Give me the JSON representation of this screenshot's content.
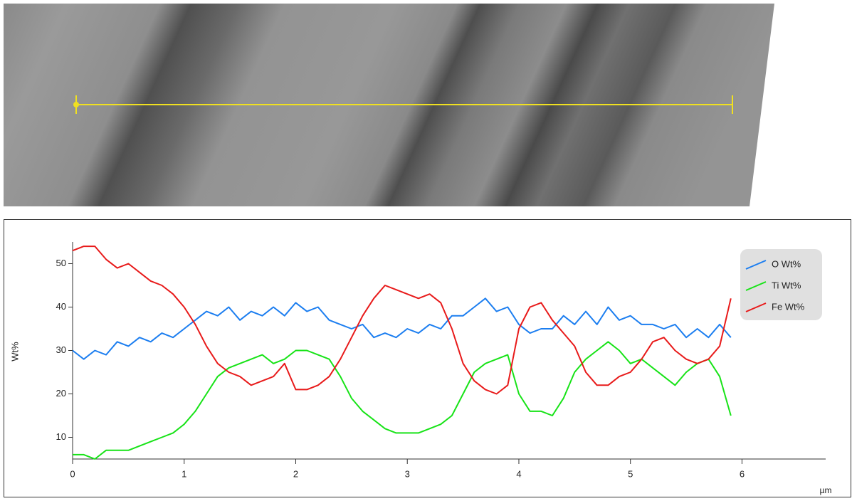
{
  "chart_data": {
    "type": "line",
    "y_label": "Wt%",
    "x_label": "µm",
    "x": [
      0,
      0.1,
      0.2,
      0.3,
      0.4,
      0.5,
      0.6,
      0.7,
      0.8,
      0.9,
      1,
      1.1,
      1.2,
      1.3,
      1.4,
      1.5,
      1.6,
      1.7,
      1.8,
      1.9,
      2,
      2.1,
      2.2,
      2.3,
      2.4,
      2.5,
      2.6,
      2.7,
      2.8,
      2.9,
      3,
      3.1,
      3.2,
      3.3,
      3.4,
      3.5,
      3.6,
      3.7,
      3.8,
      3.9,
      4,
      4.1,
      4.2,
      4.3,
      4.4,
      4.5,
      4.6,
      4.7,
      4.8,
      4.9,
      5,
      5.1,
      5.2,
      5.3,
      5.4,
      5.5,
      5.6,
      5.7,
      5.8,
      5.9
    ],
    "series": [
      {
        "name": "O Wt%",
        "color": "#1c7ef0",
        "values": [
          30,
          28,
          30,
          29,
          32,
          31,
          33,
          32,
          34,
          33,
          35,
          37,
          39,
          38,
          40,
          37,
          39,
          38,
          40,
          38,
          41,
          39,
          40,
          37,
          36,
          35,
          36,
          33,
          34,
          33,
          35,
          34,
          36,
          35,
          38,
          38,
          40,
          42,
          39,
          40,
          36,
          34,
          35,
          35,
          38,
          36,
          39,
          36,
          40,
          37,
          38,
          36,
          36,
          35,
          36,
          33,
          35,
          33,
          36,
          33
        ]
      },
      {
        "name": "Ti Wt%",
        "color": "#17e317",
        "values": [
          6,
          6,
          5,
          7,
          7,
          7,
          8,
          9,
          10,
          11,
          13,
          16,
          20,
          24,
          26,
          27,
          28,
          29,
          27,
          28,
          30,
          30,
          29,
          28,
          24,
          19,
          16,
          14,
          12,
          11,
          11,
          11,
          12,
          13,
          15,
          20,
          25,
          27,
          28,
          29,
          20,
          16,
          16,
          15,
          19,
          25,
          28,
          30,
          32,
          30,
          27,
          28,
          26,
          24,
          22,
          25,
          27,
          28,
          24,
          15
        ]
      },
      {
        "name": "Fe Wt%",
        "color": "#e81a1a",
        "values": [
          53,
          54,
          54,
          51,
          49,
          50,
          48,
          46,
          45,
          43,
          40,
          36,
          31,
          27,
          25,
          24,
          22,
          23,
          24,
          27,
          21,
          21,
          22,
          24,
          28,
          33,
          38,
          42,
          45,
          44,
          43,
          42,
          43,
          41,
          35,
          27,
          23,
          21,
          20,
          22,
          35,
          40,
          41,
          37,
          34,
          31,
          25,
          22,
          22,
          24,
          25,
          28,
          32,
          33,
          30,
          28,
          27,
          28,
          31,
          42
        ]
      }
    ],
    "xlim": [
      0,
      6.75
    ],
    "ylim": [
      5,
      55
    ],
    "xticks": [
      0,
      1,
      2,
      3,
      4,
      5,
      6
    ],
    "yticks": [
      10,
      20,
      30,
      40,
      50
    ],
    "legend": "top-right"
  }
}
